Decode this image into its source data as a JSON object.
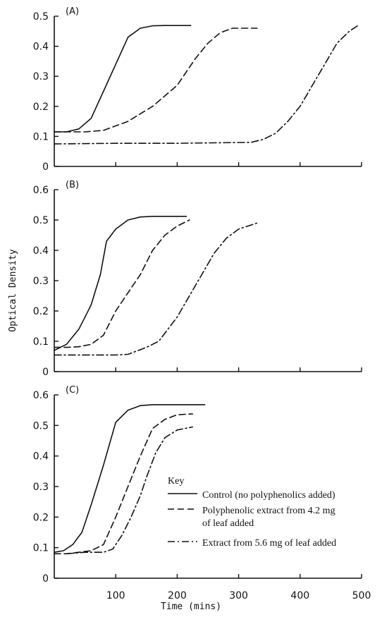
{
  "figure": {
    "ylabel": "Optical Density",
    "xlabel": "Time (mins)",
    "xticks": [
      "100",
      "200",
      "300",
      "400",
      "500"
    ],
    "key": {
      "title": "Key",
      "entries": [
        {
          "style": "solid",
          "lines": [
            "Control (no polyphenolics added)"
          ]
        },
        {
          "style": "dashed",
          "lines": [
            "Polyphenolic extract from 4.2 mg",
            "of leaf added"
          ]
        },
        {
          "style": "dashdot",
          "lines": [
            "Extract from 5.6 mg of leaf added"
          ]
        }
      ]
    }
  },
  "chart_data": [
    {
      "type": "line",
      "panel_label": "(A)",
      "xlim": [
        0,
        500
      ],
      "ylim": [
        0,
        0.5
      ],
      "yticks": [
        "0",
        "0.1",
        "0.2",
        "0.3",
        "0.4",
        "0.5"
      ],
      "series": [
        {
          "style": "solid",
          "points": [
            [
              0,
              0.115
            ],
            [
              20,
              0.115
            ],
            [
              40,
              0.125
            ],
            [
              60,
              0.16
            ],
            [
              80,
              0.25
            ],
            [
              100,
              0.34
            ],
            [
              120,
              0.43
            ],
            [
              140,
              0.46
            ],
            [
              160,
              0.468
            ],
            [
              180,
              0.469
            ],
            [
              222,
              0.469
            ]
          ]
        },
        {
          "style": "dashed",
          "points": [
            [
              0,
              0.115
            ],
            [
              20,
              0.115
            ],
            [
              50,
              0.115
            ],
            [
              80,
              0.12
            ],
            [
              120,
              0.15
            ],
            [
              160,
              0.2
            ],
            [
              200,
              0.27
            ],
            [
              230,
              0.36
            ],
            [
              250,
              0.41
            ],
            [
              270,
              0.445
            ],
            [
              290,
              0.46
            ],
            [
              330,
              0.46
            ]
          ]
        },
        {
          "style": "dashdot",
          "points": [
            [
              0,
              0.075
            ],
            [
              100,
              0.077
            ],
            [
              200,
              0.077
            ],
            [
              320,
              0.08
            ],
            [
              340,
              0.09
            ],
            [
              360,
              0.11
            ],
            [
              380,
              0.15
            ],
            [
              400,
              0.2
            ],
            [
              420,
              0.27
            ],
            [
              440,
              0.34
            ],
            [
              460,
              0.41
            ],
            [
              480,
              0.45
            ],
            [
              495,
              0.47
            ]
          ]
        }
      ]
    },
    {
      "type": "line",
      "panel_label": "(B)",
      "xlim": [
        0,
        500
      ],
      "ylim": [
        0,
        0.6
      ],
      "yticks": [
        "0",
        "0.1",
        "0.2",
        "0.3",
        "0.4",
        "0.5",
        "0.6"
      ],
      "series": [
        {
          "style": "solid",
          "points": [
            [
              0,
              0.07
            ],
            [
              20,
              0.09
            ],
            [
              40,
              0.14
            ],
            [
              60,
              0.22
            ],
            [
              75,
              0.32
            ],
            [
              85,
              0.43
            ],
            [
              100,
              0.47
            ],
            [
              120,
              0.5
            ],
            [
              140,
              0.51
            ],
            [
              160,
              0.512
            ],
            [
              215,
              0.512
            ]
          ]
        },
        {
          "style": "dashed",
          "points": [
            [
              0,
              0.08
            ],
            [
              20,
              0.08
            ],
            [
              40,
              0.082
            ],
            [
              60,
              0.09
            ],
            [
              80,
              0.12
            ],
            [
              100,
              0.2
            ],
            [
              120,
              0.26
            ],
            [
              140,
              0.32
            ],
            [
              160,
              0.4
            ],
            [
              180,
              0.45
            ],
            [
              200,
              0.48
            ],
            [
              220,
              0.5
            ]
          ]
        },
        {
          "style": "dashdot",
          "points": [
            [
              0,
              0.055
            ],
            [
              50,
              0.055
            ],
            [
              100,
              0.055
            ],
            [
              120,
              0.057
            ],
            [
              150,
              0.08
            ],
            [
              170,
              0.1
            ],
            [
              200,
              0.18
            ],
            [
              220,
              0.25
            ],
            [
              240,
              0.32
            ],
            [
              260,
              0.39
            ],
            [
              280,
              0.44
            ],
            [
              300,
              0.47
            ],
            [
              330,
              0.49
            ]
          ]
        }
      ]
    },
    {
      "type": "line",
      "panel_label": "(C)",
      "xlim": [
        0,
        500
      ],
      "ylim": [
        0,
        0.6
      ],
      "yticks": [
        "0",
        "0.1",
        "0.2",
        "0.3",
        "0.4",
        "0.5",
        "0.6"
      ],
      "series": [
        {
          "style": "solid",
          "points": [
            [
              0,
              0.085
            ],
            [
              15,
              0.09
            ],
            [
              30,
              0.11
            ],
            [
              45,
              0.15
            ],
            [
              60,
              0.24
            ],
            [
              80,
              0.37
            ],
            [
              100,
              0.51
            ],
            [
              120,
              0.55
            ],
            [
              140,
              0.565
            ],
            [
              160,
              0.568
            ],
            [
              245,
              0.568
            ]
          ]
        },
        {
          "style": "dashed",
          "points": [
            [
              0,
              0.08
            ],
            [
              20,
              0.08
            ],
            [
              40,
              0.085
            ],
            [
              60,
              0.09
            ],
            [
              80,
              0.11
            ],
            [
              100,
              0.2
            ],
            [
              120,
              0.3
            ],
            [
              140,
              0.4
            ],
            [
              160,
              0.49
            ],
            [
              180,
              0.52
            ],
            [
              200,
              0.535
            ],
            [
              225,
              0.538
            ]
          ]
        },
        {
          "style": "dashdot",
          "points": [
            [
              20,
              0.08
            ],
            [
              50,
              0.085
            ],
            [
              80,
              0.085
            ],
            [
              95,
              0.095
            ],
            [
              110,
              0.14
            ],
            [
              125,
              0.2
            ],
            [
              140,
              0.27
            ],
            [
              150,
              0.33
            ],
            [
              165,
              0.41
            ],
            [
              180,
              0.46
            ],
            [
              200,
              0.485
            ],
            [
              225,
              0.495
            ]
          ]
        }
      ]
    }
  ]
}
